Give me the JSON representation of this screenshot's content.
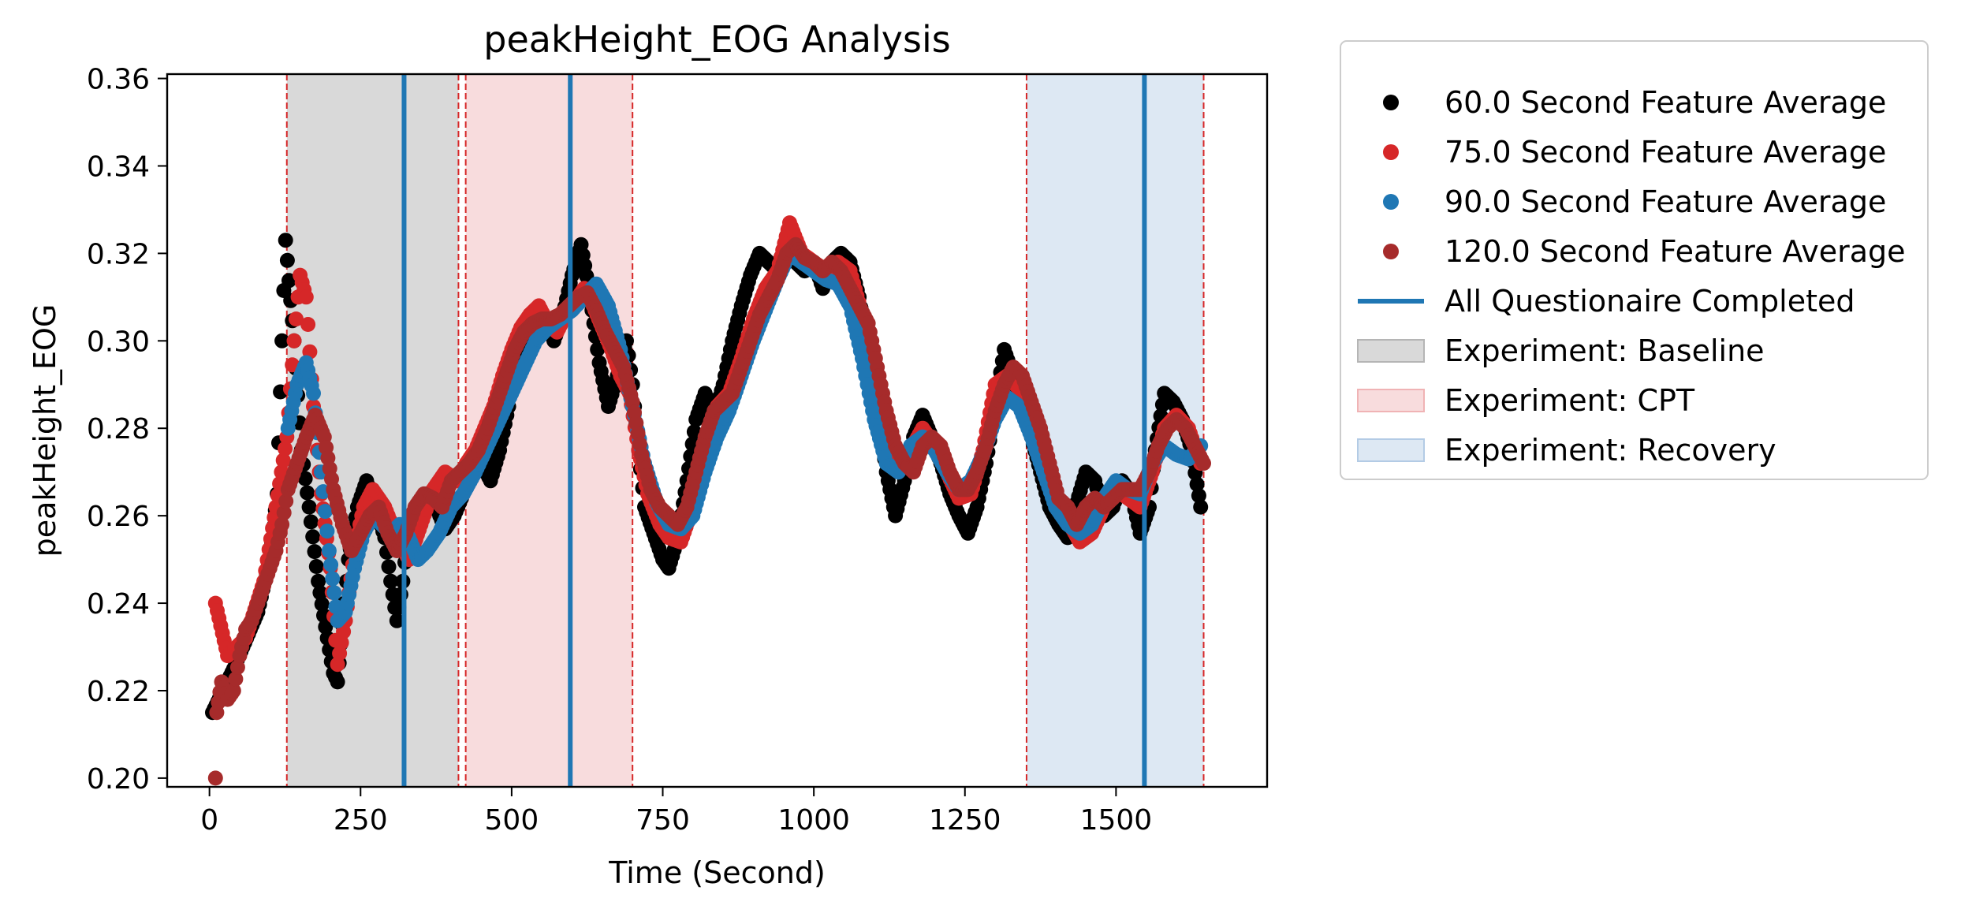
{
  "chart_data": {
    "type": "scatter",
    "title": "peakHeight_EOG Analysis",
    "xlabel": "Time (Second)",
    "ylabel": "peakHeight_EOG",
    "xlim": [
      -70,
      1750
    ],
    "ylim": [
      0.198,
      0.361
    ],
    "x_ticks": [
      0,
      250,
      500,
      750,
      1000,
      1250,
      1500
    ],
    "y_ticks": [
      0.2,
      0.22,
      0.24,
      0.26,
      0.28,
      0.3,
      0.32,
      0.34,
      0.36
    ],
    "grid": false,
    "legend_position": "outside-right-top",
    "spans": [
      {
        "label": "Experiment: Baseline",
        "x0": 128,
        "x1": 412,
        "color": "#d9d9d9"
      },
      {
        "label": "Experiment: CPT",
        "x0": 424,
        "x1": 700,
        "color": "#f8dcdd"
      },
      {
        "label": "Experiment: Recovery",
        "x0": 1352,
        "x1": 1645,
        "color": "#dde8f3"
      }
    ],
    "span_edges": [
      128,
      412,
      424,
      700,
      1352,
      1645
    ],
    "span_edge_color": "#d62728",
    "vlines": {
      "label": "All Questionaire Completed",
      "x": [
        322,
        597,
        1547
      ],
      "color": "#1f77b4"
    },
    "series": [
      {
        "name": "60.0 Second Feature Average",
        "color": "#000000",
        "x": [
          5,
          40,
          80,
          100,
          112,
          120,
          126,
          140,
          152,
          165,
          180,
          195,
          205,
          212,
          220,
          230,
          245,
          260,
          275,
          290,
          300,
          310,
          320,
          330,
          345,
          360,
          375,
          390,
          405,
          420,
          435,
          450,
          465,
          480,
          495,
          510,
          525,
          540,
          555,
          570,
          585,
          600,
          615,
          630,
          645,
          660,
          675,
          690,
          700,
          710,
          720,
          735,
          750,
          760,
          775,
          790,
          805,
          820,
          835,
          850,
          865,
          880,
          895,
          910,
          925,
          940,
          955,
          970,
          985,
          1000,
          1015,
          1030,
          1045,
          1060,
          1075,
          1090,
          1105,
          1120,
          1135,
          1150,
          1165,
          1180,
          1195,
          1210,
          1225,
          1240,
          1255,
          1270,
          1285,
          1300,
          1315,
          1330,
          1345,
          1360,
          1375,
          1390,
          1405,
          1420,
          1435,
          1450,
          1465,
          1480,
          1495,
          1510,
          1525,
          1540,
          1555,
          1565,
          1580,
          1595,
          1610,
          1625,
          1640
        ],
        "y": [
          0.215,
          0.225,
          0.238,
          0.25,
          0.265,
          0.3,
          0.323,
          0.3,
          0.275,
          0.262,
          0.245,
          0.232,
          0.224,
          0.222,
          0.235,
          0.25,
          0.262,
          0.268,
          0.262,
          0.255,
          0.245,
          0.236,
          0.245,
          0.258,
          0.262,
          0.265,
          0.262,
          0.257,
          0.26,
          0.265,
          0.27,
          0.272,
          0.268,
          0.275,
          0.285,
          0.298,
          0.303,
          0.307,
          0.305,
          0.3,
          0.306,
          0.315,
          0.322,
          0.31,
          0.295,
          0.285,
          0.292,
          0.3,
          0.29,
          0.275,
          0.262,
          0.256,
          0.25,
          0.248,
          0.255,
          0.268,
          0.282,
          0.288,
          0.283,
          0.29,
          0.3,
          0.308,
          0.315,
          0.32,
          0.318,
          0.316,
          0.324,
          0.318,
          0.316,
          0.318,
          0.312,
          0.318,
          0.32,
          0.318,
          0.31,
          0.298,
          0.285,
          0.27,
          0.26,
          0.268,
          0.278,
          0.283,
          0.278,
          0.272,
          0.265,
          0.26,
          0.256,
          0.262,
          0.272,
          0.285,
          0.298,
          0.292,
          0.285,
          0.278,
          0.27,
          0.262,
          0.258,
          0.255,
          0.263,
          0.27,
          0.268,
          0.26,
          0.262,
          0.268,
          0.265,
          0.256,
          0.262,
          0.275,
          0.288,
          0.286,
          0.282,
          0.275,
          0.262
        ]
      },
      {
        "name": "75.0 Second Feature Average",
        "color": "#d62728",
        "x": [
          10,
          30,
          60,
          90,
          110,
          128,
          140,
          150,
          160,
          172,
          185,
          200,
          212,
          225,
          240,
          255,
          270,
          290,
          310,
          330,
          350,
          370,
          390,
          410,
          425,
          440,
          455,
          470,
          485,
          500,
          515,
          530,
          545,
          560,
          575,
          590,
          605,
          620,
          635,
          650,
          665,
          680,
          695,
          710,
          725,
          745,
          760,
          780,
          800,
          820,
          840,
          860,
          880,
          900,
          920,
          940,
          960,
          980,
          1000,
          1020,
          1040,
          1060,
          1080,
          1100,
          1120,
          1140,
          1160,
          1180,
          1200,
          1220,
          1240,
          1260,
          1280,
          1300,
          1320,
          1340,
          1360,
          1380,
          1400,
          1420,
          1440,
          1460,
          1480,
          1500,
          1520,
          1540,
          1560,
          1580,
          1600,
          1620,
          1640
        ],
        "y": [
          0.24,
          0.228,
          0.232,
          0.245,
          0.262,
          0.278,
          0.3,
          0.315,
          0.31,
          0.285,
          0.265,
          0.248,
          0.226,
          0.236,
          0.252,
          0.262,
          0.266,
          0.262,
          0.255,
          0.25,
          0.258,
          0.266,
          0.27,
          0.268,
          0.272,
          0.275,
          0.28,
          0.285,
          0.292,
          0.298,
          0.303,
          0.306,
          0.308,
          0.304,
          0.302,
          0.306,
          0.309,
          0.312,
          0.308,
          0.303,
          0.298,
          0.292,
          0.288,
          0.275,
          0.265,
          0.258,
          0.255,
          0.254,
          0.262,
          0.276,
          0.285,
          0.288,
          0.296,
          0.305,
          0.312,
          0.316,
          0.327,
          0.32,
          0.318,
          0.316,
          0.318,
          0.316,
          0.306,
          0.292,
          0.278,
          0.272,
          0.275,
          0.28,
          0.276,
          0.27,
          0.264,
          0.265,
          0.275,
          0.29,
          0.292,
          0.289,
          0.282,
          0.272,
          0.264,
          0.259,
          0.254,
          0.256,
          0.262,
          0.266,
          0.264,
          0.262,
          0.27,
          0.28,
          0.283,
          0.28,
          0.272
        ]
      },
      {
        "name": "90.0 Second Feature Average",
        "color": "#1f77b4",
        "x": [
          130,
          145,
          160,
          172,
          185,
          198,
          212,
          225,
          240,
          255,
          270,
          285,
          300,
          315,
          330,
          345,
          360,
          380,
          400,
          420,
          440,
          460,
          480,
          500,
          520,
          540,
          560,
          580,
          600,
          620,
          640,
          660,
          680,
          700,
          720,
          740,
          760,
          780,
          800,
          820,
          840,
          860,
          880,
          900,
          920,
          940,
          960,
          980,
          1000,
          1020,
          1040,
          1060,
          1080,
          1100,
          1120,
          1140,
          1160,
          1180,
          1200,
          1220,
          1240,
          1260,
          1280,
          1300,
          1320,
          1340,
          1360,
          1380,
          1400,
          1420,
          1440,
          1460,
          1480,
          1500,
          1520,
          1540,
          1560,
          1580,
          1600,
          1620,
          1640
        ],
        "y": [
          0.28,
          0.29,
          0.295,
          0.288,
          0.27,
          0.252,
          0.236,
          0.238,
          0.248,
          0.256,
          0.26,
          0.258,
          0.256,
          0.258,
          0.255,
          0.25,
          0.252,
          0.256,
          0.262,
          0.265,
          0.27,
          0.276,
          0.282,
          0.288,
          0.294,
          0.3,
          0.303,
          0.305,
          0.307,
          0.31,
          0.313,
          0.308,
          0.298,
          0.285,
          0.272,
          0.263,
          0.258,
          0.257,
          0.26,
          0.27,
          0.278,
          0.284,
          0.292,
          0.3,
          0.307,
          0.314,
          0.32,
          0.318,
          0.316,
          0.314,
          0.313,
          0.308,
          0.296,
          0.282,
          0.272,
          0.27,
          0.276,
          0.278,
          0.275,
          0.27,
          0.266,
          0.268,
          0.274,
          0.282,
          0.287,
          0.285,
          0.278,
          0.27,
          0.262,
          0.258,
          0.256,
          0.258,
          0.264,
          0.268,
          0.266,
          0.265,
          0.272,
          0.276,
          0.274,
          0.273,
          0.276
        ]
      },
      {
        "name": "120.0 Second Feature Average",
        "color": "#a62b2b",
        "x": [
          10,
          12,
          20,
          30,
          40,
          50,
          60,
          70,
          80,
          90,
          100,
          110,
          120,
          130,
          145,
          160,
          175,
          190,
          205,
          220,
          235,
          250,
          265,
          280,
          295,
          310,
          325,
          340,
          355,
          370,
          385,
          400,
          415,
          430,
          445,
          460,
          475,
          490,
          505,
          520,
          535,
          550,
          565,
          580,
          595,
          610,
          625,
          640,
          655,
          670,
          685,
          700,
          715,
          730,
          745,
          760,
          775,
          790,
          805,
          820,
          835,
          850,
          865,
          880,
          895,
          910,
          925,
          940,
          955,
          970,
          985,
          1000,
          1015,
          1030,
          1045,
          1060,
          1075,
          1090,
          1105,
          1120,
          1135,
          1150,
          1165,
          1180,
          1195,
          1210,
          1225,
          1240,
          1255,
          1270,
          1285,
          1300,
          1315,
          1330,
          1345,
          1360,
          1375,
          1390,
          1405,
          1420,
          1435,
          1450,
          1465,
          1480,
          1495,
          1510,
          1525,
          1540,
          1555,
          1570,
          1585,
          1600,
          1615,
          1630,
          1645
        ],
        "y": [
          0.2,
          0.215,
          0.222,
          0.218,
          0.22,
          0.228,
          0.234,
          0.236,
          0.24,
          0.244,
          0.248,
          0.252,
          0.258,
          0.266,
          0.272,
          0.278,
          0.283,
          0.278,
          0.266,
          0.258,
          0.252,
          0.256,
          0.26,
          0.262,
          0.256,
          0.252,
          0.256,
          0.262,
          0.265,
          0.264,
          0.262,
          0.268,
          0.27,
          0.272,
          0.275,
          0.28,
          0.286,
          0.292,
          0.298,
          0.302,
          0.304,
          0.305,
          0.305,
          0.306,
          0.308,
          0.31,
          0.311,
          0.307,
          0.302,
          0.298,
          0.294,
          0.286,
          0.274,
          0.266,
          0.262,
          0.26,
          0.258,
          0.262,
          0.27,
          0.278,
          0.284,
          0.286,
          0.288,
          0.294,
          0.3,
          0.306,
          0.31,
          0.314,
          0.32,
          0.322,
          0.319,
          0.318,
          0.316,
          0.318,
          0.316,
          0.312,
          0.308,
          0.304,
          0.294,
          0.284,
          0.276,
          0.272,
          0.27,
          0.276,
          0.278,
          0.276,
          0.27,
          0.266,
          0.266,
          0.27,
          0.276,
          0.284,
          0.29,
          0.294,
          0.292,
          0.286,
          0.28,
          0.272,
          0.264,
          0.262,
          0.258,
          0.262,
          0.264,
          0.262,
          0.264,
          0.266,
          0.266,
          0.266,
          0.27,
          0.276,
          0.28,
          0.282,
          0.28,
          0.276,
          0.272
        ]
      }
    ],
    "legend": [
      {
        "kind": "marker",
        "label": "60.0 Second Feature Average",
        "color": "#000000"
      },
      {
        "kind": "marker",
        "label": "75.0 Second Feature Average",
        "color": "#d62728"
      },
      {
        "kind": "marker",
        "label": "90.0 Second Feature Average",
        "color": "#1f77b4"
      },
      {
        "kind": "marker",
        "label": "120.0 Second Feature Average",
        "color": "#a62b2b"
      },
      {
        "kind": "line",
        "label": "All Questionaire Completed",
        "color": "#1f77b4"
      },
      {
        "kind": "patch",
        "label": "Experiment: Baseline",
        "color": "#d9d9d9",
        "edge": "#b5b5b5"
      },
      {
        "kind": "patch",
        "label": "Experiment: CPT",
        "color": "#f8dcdd",
        "edge": "#f0b3b5"
      },
      {
        "kind": "patch",
        "label": "Experiment: Recovery",
        "color": "#dde8f3",
        "edge": "#b3cbe5"
      }
    ]
  }
}
